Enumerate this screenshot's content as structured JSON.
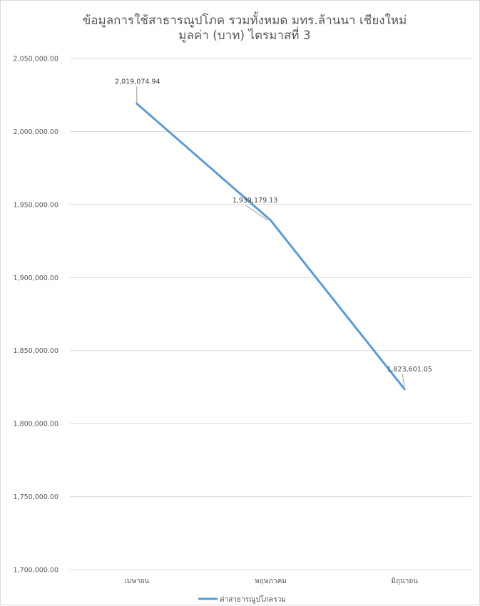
{
  "chart_data": {
    "type": "line",
    "title_lines": [
      "ข้อมูลการใช้สาธารณูปโภค รวมทั้งหมด มทร.ล้านนา เชียงใหม่",
      "มูลค่า (บาท) ไตรมาสที่ 3"
    ],
    "categories": [
      "เมษายน",
      "พฤษภาคม",
      "มิถุนายน"
    ],
    "series": [
      {
        "name": "ค่าสาธารณูปโภครวม",
        "values": [
          2019074.94,
          1939179.13,
          1823601.05
        ],
        "value_labels": [
          "2,019,074.94",
          "1,939,179.13",
          "1,823,601.05"
        ],
        "color": "#5b9bd5"
      }
    ],
    "ylim": [
      1700000,
      2050000
    ],
    "y_ticks": [
      1700000,
      1750000,
      1800000,
      1850000,
      1900000,
      1950000,
      2000000,
      2050000
    ],
    "y_tick_labels": [
      "1,700,000.00",
      "1,750,000.00",
      "1,800,000.00",
      "1,850,000.00",
      "1,900,000.00",
      "1,950,000.00",
      "2,000,000.00",
      "2,050,000.00"
    ],
    "grid": true,
    "legend_position": "bottom"
  }
}
